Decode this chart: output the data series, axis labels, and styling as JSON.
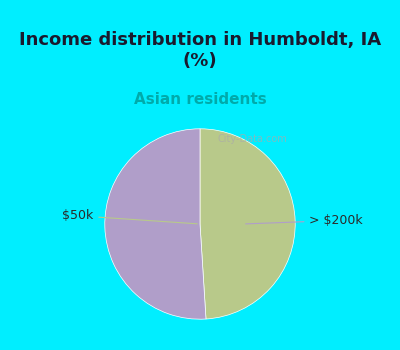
{
  "title": "Income distribution in Humboldt, IA\n(%)",
  "subtitle": "Asian residents",
  "slices": [
    {
      "label": "$50k",
      "value": 49,
      "color": "#b8c98a"
    },
    {
      "label": "> $200k",
      "value": 51,
      "color": "#b09ec9"
    }
  ],
  "bg_color_top": "#00eeff",
  "bg_color_chart": "#e8f5e8",
  "title_color": "#1a1a2e",
  "subtitle_color": "#00aaaa",
  "label_color": "#2a2a2a",
  "watermark": "City-Data.com",
  "figsize": [
    4.0,
    3.5
  ],
  "dpi": 100
}
